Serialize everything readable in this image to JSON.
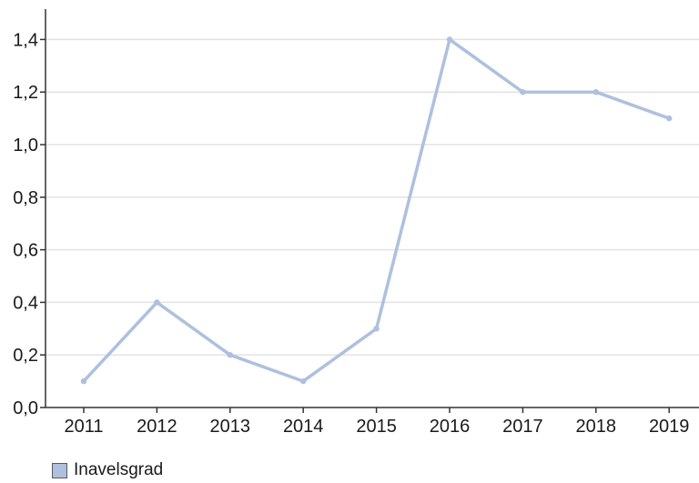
{
  "chart_data": {
    "type": "line",
    "title": "",
    "xlabel": "",
    "ylabel": "",
    "categories": [
      "2011",
      "2012",
      "2013",
      "2014",
      "2015",
      "2016",
      "2017",
      "2018",
      "2019"
    ],
    "series": [
      {
        "name": "Inavelsgrad",
        "values": [
          0.1,
          0.4,
          0.2,
          0.1,
          0.3,
          1.4,
          1.2,
          1.2,
          1.1
        ],
        "color": "#aec0de"
      }
    ],
    "ylim": [
      0.0,
      1.5
    ],
    "y_ticks": [
      "0,0",
      "0,2",
      "0,4",
      "0,6",
      "0,8",
      "1,0",
      "1,2",
      "1,4"
    ],
    "grid": true,
    "legend_position": "bottom-left"
  }
}
